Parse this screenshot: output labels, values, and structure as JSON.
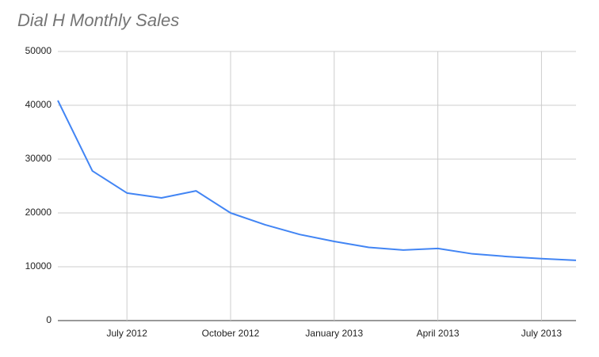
{
  "chart_data": {
    "type": "line",
    "title": "Dial H Monthly Sales",
    "x": [
      "2012-05",
      "2012-06",
      "2012-07",
      "2012-08",
      "2012-09",
      "2012-10",
      "2012-11",
      "2012-12",
      "2013-01",
      "2013-02",
      "2013-03",
      "2013-04",
      "2013-05",
      "2013-06",
      "2013-07",
      "2013-08"
    ],
    "values": [
      40900,
      27800,
      23700,
      22800,
      24100,
      20000,
      17800,
      16000,
      14700,
      13600,
      13100,
      13400,
      12400,
      11900,
      11500,
      11200
    ],
    "color": "#4285f4",
    "xlim": [
      "2012-05",
      "2013-08"
    ],
    "xticks": [
      {
        "value": "2012-07",
        "label": "July 2012"
      },
      {
        "value": "2012-10",
        "label": "October 2012"
      },
      {
        "value": "2013-01",
        "label": "January 2013"
      },
      {
        "value": "2013-04",
        "label": "April 2013"
      },
      {
        "value": "2013-07",
        "label": "July 2013"
      }
    ],
    "ylim": [
      0,
      50000
    ],
    "yticks": [
      0,
      10000,
      20000,
      30000,
      40000,
      50000
    ],
    "grid": true
  }
}
